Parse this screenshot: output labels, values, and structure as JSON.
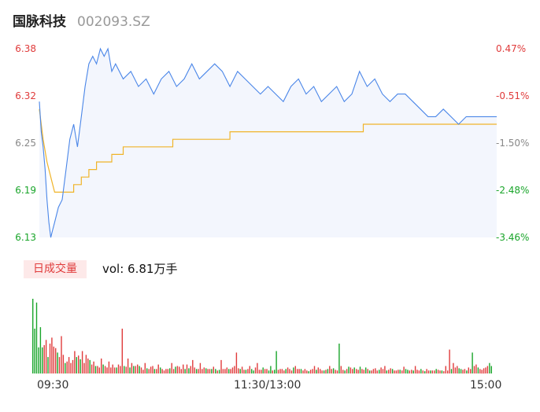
{
  "header": {
    "name": "国脉科技",
    "code": "002093.SZ"
  },
  "volume": {
    "tab_label": "日成交量",
    "info": "vol: 6.81万手"
  },
  "colors": {
    "price_line": "#4a86e8",
    "avg_line": "#f0b429",
    "up": "#e03b3b",
    "down": "#19a52a"
  },
  "chart_data": [
    {
      "type": "line",
      "title": "",
      "y_left_ticks": [
        "6.38",
        "6.32",
        "6.25",
        "6.19",
        "6.13"
      ],
      "y_right_ticks": [
        "0.47%",
        "-0.51%",
        "-1.50%",
        "-2.48%",
        "-3.46%"
      ],
      "ylim": [
        6.13,
        6.38
      ],
      "x_ticks": [
        "09:30",
        "11:30/13:00",
        "15:00"
      ],
      "x_range_minutes": [
        0,
        240
      ],
      "series": [
        {
          "key": "price",
          "x": [
            0,
            1,
            2,
            3,
            4,
            5,
            6,
            7,
            8,
            10,
            12,
            14,
            16,
            18,
            20,
            22,
            24,
            26,
            28,
            30,
            32,
            34,
            36,
            38,
            40,
            44,
            48,
            52,
            56,
            60,
            64,
            68,
            72,
            76,
            80,
            84,
            88,
            92,
            96,
            100,
            104,
            108,
            112,
            116,
            120,
            124,
            128,
            132,
            136,
            140,
            144,
            148,
            152,
            156,
            160,
            164,
            168,
            172,
            176,
            180,
            184,
            188,
            192,
            196,
            200,
            204,
            208,
            212,
            216,
            220,
            224,
            228,
            232,
            236,
            240
          ],
          "values": [
            6.31,
            6.27,
            6.25,
            6.22,
            6.18,
            6.15,
            6.13,
            6.14,
            6.15,
            6.17,
            6.18,
            6.22,
            6.26,
            6.28,
            6.25,
            6.29,
            6.33,
            6.36,
            6.37,
            6.36,
            6.38,
            6.37,
            6.38,
            6.35,
            6.36,
            6.34,
            6.35,
            6.33,
            6.34,
            6.32,
            6.34,
            6.35,
            6.33,
            6.34,
            6.36,
            6.34,
            6.35,
            6.36,
            6.35,
            6.33,
            6.35,
            6.34,
            6.33,
            6.32,
            6.33,
            6.32,
            6.31,
            6.33,
            6.34,
            6.32,
            6.33,
            6.31,
            6.32,
            6.33,
            6.31,
            6.32,
            6.35,
            6.33,
            6.34,
            6.32,
            6.31,
            6.32,
            6.32,
            6.31,
            6.3,
            6.29,
            6.29,
            6.3,
            6.29,
            6.28,
            6.29,
            6.29,
            6.29,
            6.29,
            6.29
          ]
        },
        {
          "key": "average",
          "x": [
            0,
            2,
            4,
            6,
            8,
            10,
            14,
            18,
            22,
            26,
            30,
            34,
            38,
            44,
            50,
            60,
            70,
            80,
            90,
            100,
            110,
            120,
            140,
            160,
            170,
            180,
            200,
            220,
            240
          ],
          "values": [
            6.3,
            6.26,
            6.23,
            6.21,
            6.19,
            6.19,
            6.19,
            6.2,
            6.21,
            6.22,
            6.23,
            6.23,
            6.24,
            6.25,
            6.25,
            6.25,
            6.26,
            6.26,
            6.26,
            6.27,
            6.27,
            6.27,
            6.27,
            6.27,
            6.28,
            6.28,
            6.28,
            6.28,
            6.28
          ]
        }
      ]
    },
    {
      "type": "bar",
      "title": "",
      "ylim": [
        0,
        100
      ],
      "x_range_minutes": [
        0,
        240
      ],
      "volumes": [
        100,
        60,
        95,
        35,
        62,
        35,
        38,
        45,
        22,
        40,
        48,
        36,
        34,
        28,
        22,
        50,
        25,
        14,
        16,
        22,
        14,
        18,
        30,
        22,
        24,
        19,
        30,
        14,
        25,
        20,
        18,
        12,
        16,
        10,
        10,
        8,
        20,
        12,
        10,
        8,
        16,
        8,
        12,
        8,
        8,
        12,
        10,
        60,
        10,
        9,
        20,
        8,
        14,
        10,
        10,
        12,
        10,
        8,
        5,
        14,
        7,
        6,
        9,
        10,
        6,
        6,
        12,
        8,
        6,
        4,
        6,
        6,
        7,
        14,
        6,
        9,
        10,
        9,
        6,
        12,
        6,
        12,
        7,
        10,
        18,
        8,
        6,
        6,
        14,
        6,
        8,
        7,
        6,
        6,
        6,
        9,
        6,
        4,
        5,
        18,
        6,
        6,
        8,
        6,
        6,
        8,
        10,
        28,
        7,
        6,
        9,
        5,
        5,
        6,
        10,
        6,
        4,
        8,
        14,
        5,
        5,
        8,
        6,
        6,
        4,
        10,
        4,
        5,
        30,
        5,
        6,
        6,
        4,
        6,
        8,
        6,
        4,
        8,
        10,
        6,
        6,
        6,
        4,
        6,
        4,
        3,
        5,
        6,
        10,
        5,
        8,
        6,
        4,
        4,
        5,
        6,
        10,
        6,
        7,
        5,
        4,
        40,
        10,
        5,
        4,
        6,
        9,
        8,
        6,
        8,
        6,
        5,
        9,
        6,
        5,
        8,
        6,
        4,
        4,
        6,
        7,
        4,
        5,
        8,
        6,
        10,
        4,
        5,
        7,
        6,
        4,
        4,
        5,
        5,
        4,
        9,
        6,
        5,
        4,
        5,
        4,
        10,
        5,
        4,
        6,
        4,
        3,
        6,
        4,
        4,
        4,
        4,
        6,
        5,
        4,
        4,
        3,
        10,
        4,
        32,
        6,
        14,
        8,
        10,
        7,
        6,
        5,
        6,
        4,
        8,
        6,
        28,
        10,
        12,
        8,
        6,
        5,
        7,
        8,
        10,
        14,
        10
      ],
      "directions": [
        "d",
        "d",
        "d",
        "d",
        "d",
        "d",
        "u",
        "u",
        "d",
        "u",
        "u",
        "u",
        "u",
        "d",
        "u",
        "u",
        "u",
        "d",
        "u",
        "u",
        "u",
        "u",
        "u",
        "d",
        "u",
        "d",
        "u",
        "u",
        "u",
        "u",
        "d",
        "u",
        "u",
        "d",
        "u",
        "u",
        "u",
        "d",
        "u",
        "u",
        "u",
        "u",
        "u",
        "u",
        "d",
        "u",
        "u",
        "u",
        "d",
        "u",
        "u",
        "d",
        "u",
        "d",
        "u",
        "u",
        "d",
        "u",
        "u",
        "u",
        "d",
        "u",
        "u",
        "u",
        "d",
        "u",
        "u",
        "d",
        "u",
        "u",
        "u",
        "u",
        "d",
        "u",
        "u",
        "d",
        "u",
        "u",
        "u",
        "u",
        "d",
        "u",
        "d",
        "u",
        "u",
        "u",
        "d",
        "u",
        "u",
        "u",
        "u",
        "d",
        "u",
        "u",
        "d",
        "u",
        "d",
        "u",
        "d",
        "u",
        "u",
        "u",
        "u",
        "d",
        "u",
        "u",
        "u",
        "u",
        "u",
        "d",
        "u",
        "u",
        "d",
        "u",
        "u",
        "d",
        "d",
        "u",
        "u",
        "u",
        "u",
        "d",
        "u",
        "u",
        "d",
        "d",
        "u",
        "d",
        "d",
        "u",
        "u",
        "u",
        "u",
        "d",
        "u",
        "u",
        "u",
        "d",
        "u",
        "u",
        "u",
        "d",
        "u",
        "u",
        "u",
        "d",
        "u",
        "u",
        "u",
        "d",
        "u",
        "u",
        "u",
        "d",
        "u",
        "d",
        "u",
        "u",
        "d",
        "u",
        "u",
        "d",
        "u",
        "u",
        "d",
        "u",
        "d",
        "u",
        "u",
        "d",
        "u",
        "u",
        "d",
        "u",
        "u",
        "d",
        "u",
        "d",
        "u",
        "u",
        "u",
        "u",
        "d",
        "u",
        "u",
        "u",
        "d",
        "u",
        "u",
        "d",
        "u",
        "u",
        "u",
        "d",
        "u",
        "u",
        "d",
        "d",
        "u",
        "u",
        "d",
        "u",
        "u",
        "u",
        "d",
        "u",
        "d",
        "u",
        "u",
        "d",
        "u",
        "u",
        "d",
        "u",
        "u",
        "d",
        "u",
        "u",
        "u",
        "u",
        "d",
        "u",
        "u",
        "u",
        "d",
        "d",
        "u",
        "u",
        "d",
        "u",
        "u",
        "d",
        "u",
        "u",
        "d",
        "u",
        "u",
        "u",
        "u",
        "u"
      ]
    }
  ]
}
